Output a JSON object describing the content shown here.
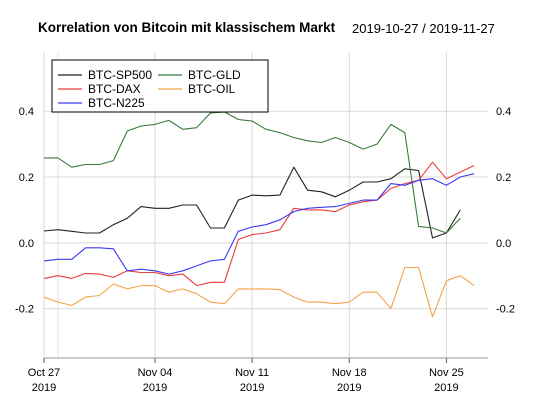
{
  "chart_data": {
    "type": "line",
    "title": "Korrelation von Bitcoin mit klassischem Markt",
    "subtitle": "2019-10-27 / 2019-11-27",
    "xlabel": "",
    "ylabel": "",
    "ylim": [
      -0.35,
      0.58
    ],
    "xlim": [
      "2019-10-27",
      "2019-11-28"
    ],
    "grid": true,
    "legend_position": "top-left",
    "x_ticks": [
      {
        "date": "2019-10-27",
        "line1": "Oct 27",
        "line2": "2019"
      },
      {
        "date": "2019-11-04",
        "line1": "Nov 04",
        "line2": "2019"
      },
      {
        "date": "2019-11-11",
        "line1": "Nov 11",
        "line2": "2019"
      },
      {
        "date": "2019-11-18",
        "line1": "Nov 18",
        "line2": "2019"
      },
      {
        "date": "2019-11-25",
        "line1": "Nov 25",
        "line2": "2019"
      }
    ],
    "y_ticks": [
      -0.2,
      0.0,
      0.2,
      0.4
    ],
    "y_tick_labels": [
      "-0.2",
      "0.0",
      "0.2",
      "0.4"
    ],
    "x": [
      "2019-10-27",
      "2019-10-28",
      "2019-10-29",
      "2019-10-30",
      "2019-10-31",
      "2019-11-01",
      "2019-11-02",
      "2019-11-03",
      "2019-11-04",
      "2019-11-05",
      "2019-11-06",
      "2019-11-07",
      "2019-11-08",
      "2019-11-09",
      "2019-11-10",
      "2019-11-11",
      "2019-11-12",
      "2019-11-13",
      "2019-11-14",
      "2019-11-15",
      "2019-11-16",
      "2019-11-17",
      "2019-11-18",
      "2019-11-19",
      "2019-11-20",
      "2019-11-21",
      "2019-11-22",
      "2019-11-23",
      "2019-11-24",
      "2019-11-25",
      "2019-11-26",
      "2019-11-27",
      "2019-11-28"
    ],
    "series": [
      {
        "name": "BTC-SP500",
        "color": "#222222",
        "values": [
          0.036,
          0.04,
          0.035,
          0.03,
          0.03,
          0.055,
          0.075,
          0.11,
          0.105,
          0.105,
          0.115,
          0.115,
          0.045,
          0.045,
          0.13,
          0.145,
          0.143,
          0.145,
          0.23,
          0.16,
          0.155,
          0.14,
          0.16,
          0.185,
          0.185,
          0.195,
          0.225,
          0.22,
          0.015,
          0.03,
          0.1,
          null,
          null
        ]
      },
      {
        "name": "BTC-GLD",
        "color": "#3a7a3a",
        "values": [
          0.258,
          0.258,
          0.23,
          0.238,
          0.238,
          0.25,
          0.34,
          0.355,
          0.36,
          0.372,
          0.345,
          0.35,
          0.395,
          0.398,
          0.375,
          0.37,
          0.345,
          0.335,
          0.32,
          0.31,
          0.305,
          0.32,
          0.305,
          0.285,
          0.3,
          0.36,
          0.335,
          0.05,
          0.045,
          0.03,
          0.075,
          null,
          null
        ]
      },
      {
        "name": "BTC-DAX",
        "color": "#ee3a3a",
        "values": [
          -0.108,
          -0.1,
          -0.108,
          -0.093,
          -0.095,
          -0.105,
          -0.085,
          -0.09,
          -0.09,
          -0.1,
          -0.095,
          -0.13,
          -0.12,
          -0.12,
          0.01,
          0.025,
          0.03,
          0.04,
          0.105,
          0.1,
          0.1,
          0.095,
          0.115,
          0.125,
          0.13,
          0.165,
          0.18,
          0.19,
          0.245,
          0.195,
          0.215,
          0.235,
          null
        ]
      },
      {
        "name": "BTC-OIL",
        "color": "#f5a34a",
        "values": [
          -0.165,
          -0.18,
          -0.19,
          -0.165,
          -0.16,
          -0.125,
          -0.14,
          -0.13,
          -0.13,
          -0.15,
          -0.14,
          -0.155,
          -0.18,
          -0.185,
          -0.14,
          -0.14,
          -0.14,
          -0.142,
          -0.165,
          -0.18,
          -0.18,
          -0.185,
          -0.18,
          -0.15,
          -0.15,
          -0.2,
          -0.075,
          -0.075,
          -0.225,
          -0.115,
          -0.1,
          -0.13,
          null
        ]
      },
      {
        "name": "BTC-N225",
        "color": "#3a3af5",
        "values": [
          -0.055,
          -0.05,
          -0.05,
          -0.015,
          -0.015,
          -0.018,
          -0.085,
          -0.08,
          -0.085,
          -0.095,
          -0.085,
          -0.07,
          -0.055,
          -0.05,
          0.035,
          0.048,
          0.055,
          0.07,
          0.095,
          0.105,
          0.108,
          0.11,
          0.12,
          0.13,
          0.13,
          0.18,
          0.175,
          0.19,
          0.195,
          0.175,
          0.2,
          0.21,
          null
        ]
      }
    ],
    "legend_items": [
      {
        "label": "BTC-SP500",
        "color": "#222222"
      },
      {
        "label": "BTC-GLD",
        "color": "#3a7a3a"
      },
      {
        "label": "BTC-DAX",
        "color": "#ee3a3a"
      },
      {
        "label": "BTC-OIL",
        "color": "#f5a34a"
      },
      {
        "label": "BTC-N225",
        "color": "#3a3af5"
      }
    ]
  }
}
